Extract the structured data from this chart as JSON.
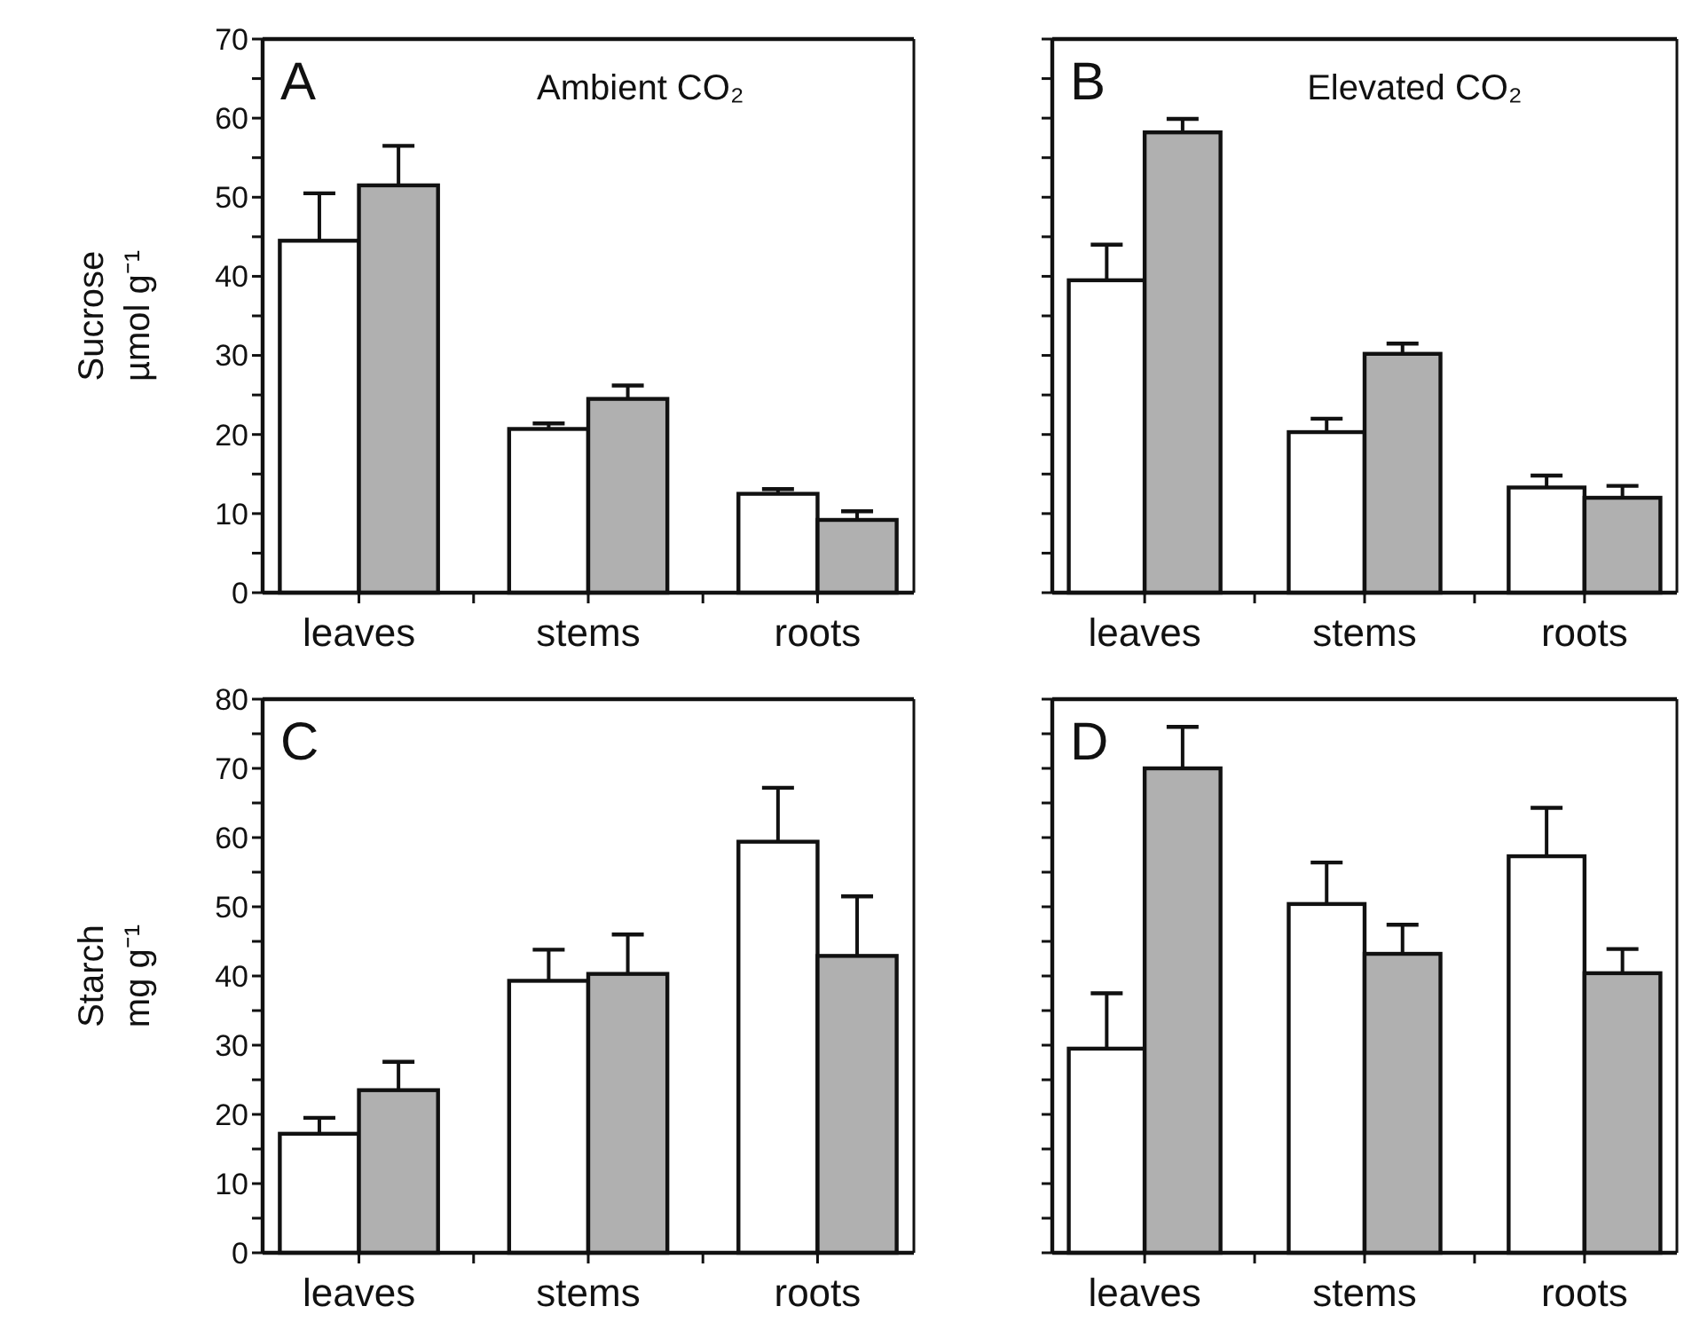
{
  "chart_data": [
    {
      "type": "bar",
      "title": "Ambient CO₂",
      "annotations": [
        "A"
      ],
      "ylabel": "Sucrose µmol g⁻¹",
      "categories": [
        "leaves",
        "stems",
        "roots"
      ],
      "ylim": [
        0,
        70
      ],
      "yticks": [
        0,
        {
          "value": 5,
          "label": null
        },
        10,
        {
          "value": 15,
          "label": null
        },
        20,
        {
          "value": 25,
          "label": null
        },
        30,
        {
          "value": 35,
          "label": null
        },
        40,
        {
          "value": 45,
          "label": null
        },
        50,
        {
          "value": 55,
          "label": null
        },
        60,
        {
          "value": 65,
          "label": null
        },
        70
      ],
      "series": [
        {
          "color": "#ffffff",
          "values": [
            44.5,
            20.7,
            12.5
          ],
          "errors": [
            6,
            0.7,
            0.6
          ]
        },
        {
          "color": "#b0b0b0",
          "values": [
            51.5,
            24.5,
            9.2
          ],
          "errors": [
            5,
            1.7,
            1.1
          ]
        }
      ]
    },
    {
      "type": "bar",
      "title": "Elevated CO₂",
      "annotations": [
        "B"
      ],
      "categories": [
        "leaves",
        "stems",
        "roots"
      ],
      "ylim": [
        0,
        70
      ],
      "tick_labels": "x",
      "yticks": [
        0,
        {
          "value": 5,
          "label": null
        },
        10,
        {
          "value": 15,
          "label": null
        },
        20,
        {
          "value": 25,
          "label": null
        },
        30,
        {
          "value": 35,
          "label": null
        },
        40,
        {
          "value": 45,
          "label": null
        },
        50,
        {
          "value": 55,
          "label": null
        },
        60,
        {
          "value": 65,
          "label": null
        },
        70
      ],
      "series": [
        {
          "color": "#ffffff",
          "values": [
            39.5,
            20.3,
            13.3
          ],
          "errors": [
            4.5,
            1.7,
            1.5
          ]
        },
        {
          "color": "#b0b0b0",
          "values": [
            58.2,
            30.2,
            12
          ],
          "errors": [
            1.7,
            1.3,
            1.5
          ]
        }
      ]
    },
    {
      "type": "bar",
      "annotations": [
        "C"
      ],
      "ylabel": "Starch mg g⁻¹",
      "categories": [
        "leaves",
        "stems",
        "roots"
      ],
      "ylim": [
        0,
        80
      ],
      "yticks": [
        0,
        {
          "value": 5,
          "label": null
        },
        10,
        {
          "value": 15,
          "label": null
        },
        20,
        {
          "value": 25,
          "label": null
        },
        30,
        {
          "value": 35,
          "label": null
        },
        40,
        {
          "value": 45,
          "label": null
        },
        50,
        {
          "value": 55,
          "label": null
        },
        60,
        {
          "value": 65,
          "label": null
        },
        70,
        {
          "value": 75,
          "label": null
        },
        80
      ],
      "series": [
        {
          "color": "#ffffff",
          "values": [
            17.2,
            39.3,
            59.4
          ],
          "errors": [
            2.3,
            4.5,
            7.8
          ]
        },
        {
          "color": "#b0b0b0",
          "values": [
            23.5,
            40.3,
            42.9
          ],
          "errors": [
            4.1,
            5.7,
            8.6
          ]
        }
      ]
    },
    {
      "type": "bar",
      "annotations": [
        "D"
      ],
      "categories": [
        "leaves",
        "stems",
        "roots"
      ],
      "ylim": [
        0,
        80
      ],
      "tick_labels": "x",
      "yticks": [
        0,
        {
          "value": 5,
          "label": null
        },
        10,
        {
          "value": 15,
          "label": null
        },
        20,
        {
          "value": 25,
          "label": null
        },
        30,
        {
          "value": 35,
          "label": null
        },
        40,
        {
          "value": 45,
          "label": null
        },
        50,
        {
          "value": 55,
          "label": null
        },
        60,
        {
          "value": 65,
          "label": null
        },
        70,
        {
          "value": 75,
          "label": null
        },
        80
      ],
      "series": [
        {
          "color": "#ffffff",
          "values": [
            29.5,
            50.4,
            57.3
          ],
          "errors": [
            8,
            6,
            7
          ]
        },
        {
          "color": "#b0b0b0",
          "values": [
            70,
            43.2,
            40.4
          ],
          "errors": [
            6,
            4.2,
            3.5
          ]
        }
      ]
    }
  ]
}
